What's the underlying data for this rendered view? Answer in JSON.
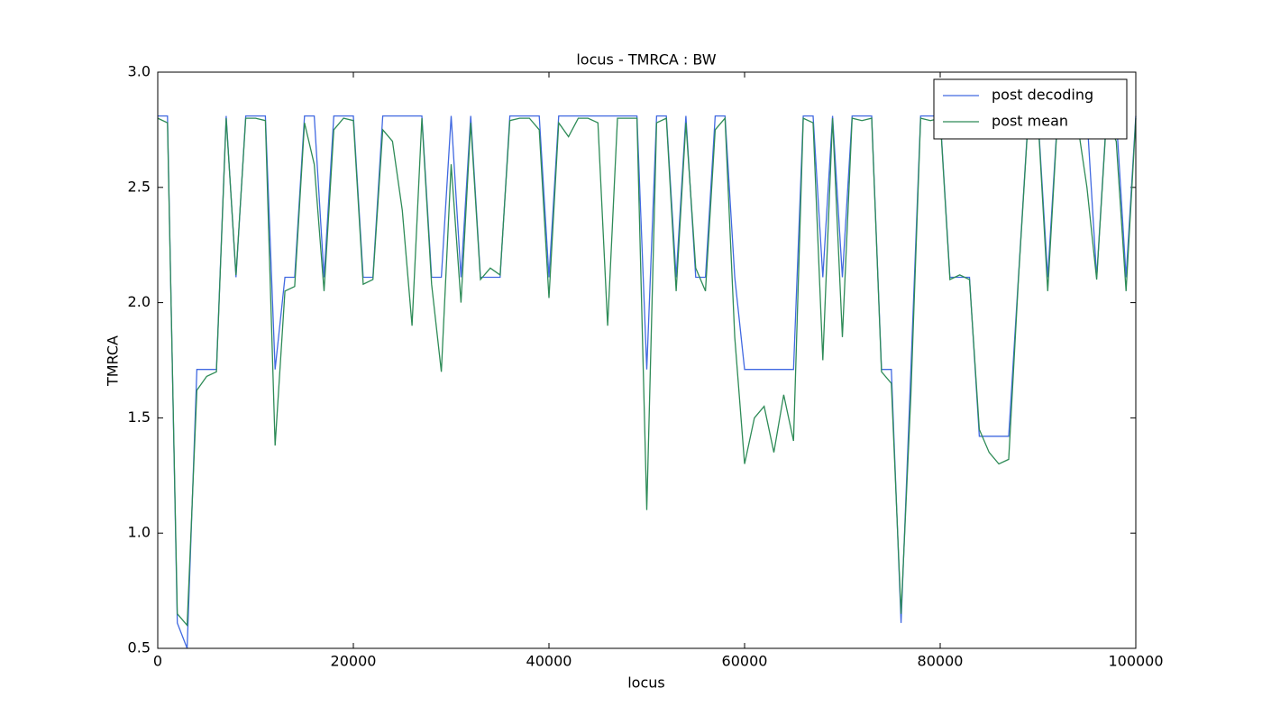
{
  "chart_data": {
    "type": "line",
    "title": "locus - TMRCA : BW",
    "x_label": "locus",
    "y_label": "TMRCA",
    "x": [
      0,
      1000,
      2000,
      3000,
      4000,
      5000,
      6000,
      7000,
      8000,
      9000,
      10000,
      11000,
      12000,
      13000,
      14000,
      15000,
      16000,
      17000,
      18000,
      19000,
      20000,
      21000,
      22000,
      23000,
      24000,
      25000,
      26000,
      27000,
      28000,
      29000,
      30000,
      31000,
      32000,
      33000,
      34000,
      35000,
      36000,
      37000,
      38000,
      39000,
      40000,
      41000,
      42000,
      43000,
      44000,
      45000,
      46000,
      47000,
      48000,
      49000,
      50000,
      51000,
      52000,
      53000,
      54000,
      55000,
      56000,
      57000,
      58000,
      59000,
      60000,
      61000,
      62000,
      63000,
      64000,
      65000,
      66000,
      67000,
      68000,
      69000,
      70000,
      71000,
      72000,
      73000,
      74000,
      75000,
      76000,
      77000,
      78000,
      79000,
      80000,
      81000,
      82000,
      83000,
      84000,
      85000,
      86000,
      87000,
      88000,
      89000,
      90000,
      91000,
      92000,
      93000,
      94000,
      95000,
      96000,
      97000,
      98000,
      99000,
      100000
    ],
    "series": [
      {
        "name": "post decoding",
        "color": "#4169e1",
        "values": [
          2.81,
          2.81,
          0.61,
          0.5,
          1.71,
          1.71,
          1.71,
          2.81,
          2.11,
          2.81,
          2.81,
          2.81,
          1.71,
          2.11,
          2.11,
          2.81,
          2.81,
          2.11,
          2.81,
          2.81,
          2.81,
          2.11,
          2.11,
          2.81,
          2.81,
          2.81,
          2.81,
          2.81,
          2.11,
          2.11,
          2.81,
          2.11,
          2.81,
          2.11,
          2.11,
          2.11,
          2.81,
          2.81,
          2.81,
          2.81,
          2.11,
          2.81,
          2.81,
          2.81,
          2.81,
          2.81,
          2.81,
          2.81,
          2.81,
          2.81,
          1.71,
          2.81,
          2.81,
          2.11,
          2.81,
          2.11,
          2.11,
          2.81,
          2.81,
          2.11,
          1.71,
          1.71,
          1.71,
          1.71,
          1.71,
          1.71,
          2.81,
          2.81,
          2.11,
          2.81,
          2.11,
          2.81,
          2.81,
          2.81,
          1.71,
          1.71,
          0.61,
          1.71,
          2.81,
          2.81,
          2.81,
          2.11,
          2.11,
          2.11,
          1.42,
          1.42,
          1.42,
          1.42,
          2.11,
          2.81,
          2.81,
          2.11,
          2.81,
          2.81,
          2.81,
          2.81,
          2.11,
          2.81,
          2.81,
          2.11,
          2.81
        ]
      },
      {
        "name": "post mean",
        "color": "#2e8b57",
        "values": [
          2.8,
          2.78,
          0.65,
          0.6,
          1.62,
          1.68,
          1.7,
          2.8,
          2.12,
          2.8,
          2.8,
          2.79,
          1.38,
          2.05,
          2.07,
          2.78,
          2.6,
          2.05,
          2.75,
          2.8,
          2.79,
          2.08,
          2.1,
          2.75,
          2.7,
          2.4,
          1.9,
          2.8,
          2.08,
          1.7,
          2.6,
          2.0,
          2.78,
          2.1,
          2.15,
          2.12,
          2.79,
          2.8,
          2.8,
          2.75,
          2.02,
          2.78,
          2.72,
          2.8,
          2.8,
          2.78,
          1.9,
          2.8,
          2.8,
          2.8,
          1.1,
          2.78,
          2.8,
          2.05,
          2.78,
          2.15,
          2.05,
          2.75,
          2.8,
          1.85,
          1.3,
          1.5,
          1.55,
          1.35,
          1.6,
          1.4,
          2.8,
          2.78,
          1.75,
          2.8,
          1.85,
          2.8,
          2.79,
          2.8,
          1.7,
          1.65,
          0.65,
          1.6,
          2.8,
          2.79,
          2.8,
          2.1,
          2.12,
          2.1,
          1.45,
          1.35,
          1.3,
          1.32,
          2.1,
          2.8,
          2.8,
          2.05,
          2.8,
          2.78,
          2.79,
          2.5,
          2.1,
          2.8,
          2.7,
          2.05,
          2.8
        ]
      }
    ],
    "xlim": [
      0,
      100000
    ],
    "ylim": [
      0.5,
      3.0
    ],
    "xticks": [
      0,
      20000,
      40000,
      60000,
      80000,
      100000
    ],
    "yticks": [
      0.5,
      {
        "value": 1.0,
        "label": "1.0"
      },
      1.5,
      {
        "value": 2.0,
        "label": "2.0"
      },
      2.5,
      {
        "value": 3.0,
        "label": "3.0"
      }
    ],
    "legend": "upper right"
  }
}
